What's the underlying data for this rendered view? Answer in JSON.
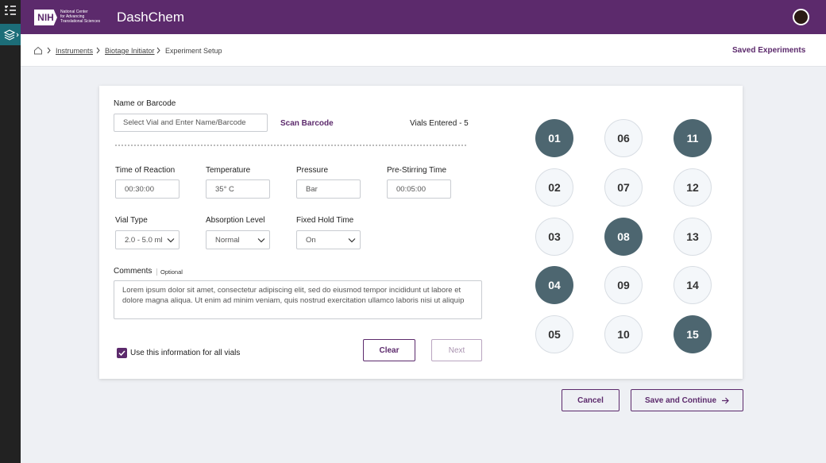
{
  "header": {
    "logo": {
      "mark": "NIH",
      "lines": [
        "National Center",
        "for Advancing",
        "Translational Sciences"
      ]
    },
    "app_title": "DashChem"
  },
  "breadcrumb": {
    "items": [
      "Instruments",
      "Biotage Initiator",
      "Experiment Setup"
    ],
    "saved_link": "Saved Experiments"
  },
  "form": {
    "name_label": "Name or Barcode",
    "name_placeholder": "Select Vial and Enter Name/Barcode",
    "scan_link": "Scan Barcode",
    "vials_entered": "Vials Entered - 5",
    "fields": [
      {
        "label": "Time of Reaction",
        "value": "00:30:00",
        "kind": "input"
      },
      {
        "label": "Temperature",
        "value": "35° C",
        "kind": "input"
      },
      {
        "label": "Pressure",
        "value": "Bar",
        "kind": "input"
      },
      {
        "label": "Pre-Stirring Time",
        "value": "00:05:00",
        "kind": "input"
      },
      {
        "label": "Vial Type",
        "value": "2.0 - 5.0 ml",
        "kind": "select"
      },
      {
        "label": "Absorption Level",
        "value": "Normal",
        "kind": "select"
      },
      {
        "label": "Fixed Hold Time",
        "value": "On",
        "kind": "select"
      }
    ],
    "comments_label": "Comments",
    "comments_optional": "Optional",
    "comments_text": "Lorem ipsum dolor sit amet, consectetur adipiscing elit, sed do eiusmod tempor incididunt ut labore et dolore magna aliqua. Ut enim ad minim veniam, quis nostrud exercitation ullamco laboris nisi ut aliquip",
    "apply_all": {
      "label": "Use this information for all vials",
      "checked": true
    },
    "clear_button": "Clear",
    "next_button": "Next"
  },
  "vials": [
    {
      "label": "01",
      "selected": true
    },
    {
      "label": "02",
      "selected": false
    },
    {
      "label": "03",
      "selected": false
    },
    {
      "label": "04",
      "selected": true
    },
    {
      "label": "05",
      "selected": false
    },
    {
      "label": "06",
      "selected": false
    },
    {
      "label": "07",
      "selected": false
    },
    {
      "label": "08",
      "selected": true
    },
    {
      "label": "09",
      "selected": false
    },
    {
      "label": "10",
      "selected": false
    },
    {
      "label": "11",
      "selected": true
    },
    {
      "label": "12",
      "selected": false
    },
    {
      "label": "13",
      "selected": false
    },
    {
      "label": "14",
      "selected": false
    },
    {
      "label": "15",
      "selected": true
    }
  ],
  "footer": {
    "cancel_button": "Cancel",
    "save_button": "Save and Continue"
  }
}
